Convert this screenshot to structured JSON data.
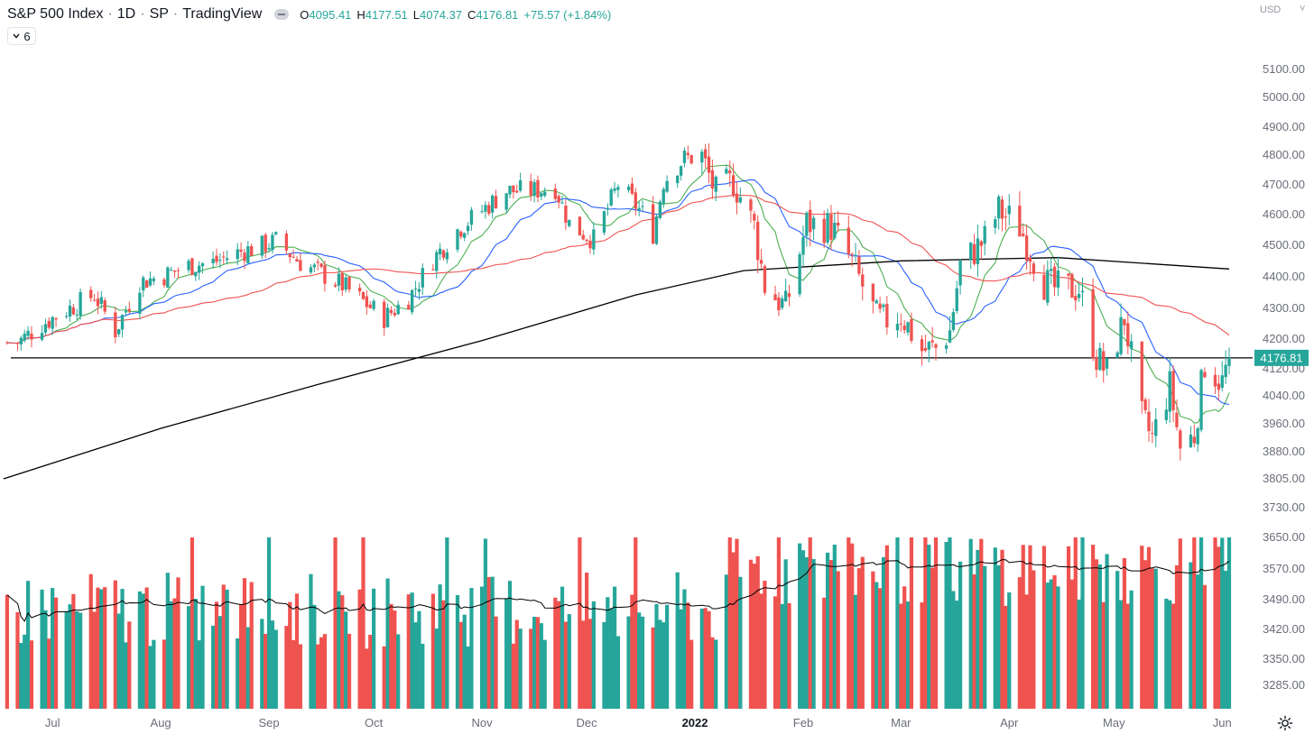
{
  "header": {
    "symbol": "S&P 500 Index",
    "interval": "1D",
    "exchange": "SP",
    "source": "TradingView",
    "ohlc": {
      "open_label": "O",
      "open": "4095.41",
      "high_label": "H",
      "high": "4177.51",
      "low_label": "L",
      "low": "4074.37",
      "close_label": "C",
      "close": "4176.81",
      "change": "+75.57 (+1.84%)"
    },
    "collapse_count": "6"
  },
  "currency": "USD",
  "last_price_label": "4176.81",
  "colors": {
    "up": "#26a69a",
    "down": "#ef5350",
    "ma_fast": "#4caf50",
    "ma_mid": "#2962ff",
    "ma_slow": "#ef5350",
    "ma_long": "#000000",
    "level_line": "#000000"
  },
  "icons": {
    "settings": "gear-icon",
    "collapse": "chevron-down-icon",
    "visibility": "eye-icon"
  },
  "chart_data": {
    "type": "candlestick",
    "title": "S&P 500 Index · 1D · SP",
    "price_axis_ticks": [
      "5100.00",
      "5000.00",
      "4900.00",
      "4800.00",
      "4700.00",
      "4600.00",
      "4500.00",
      "4400.00",
      "4300.00",
      "4200.00",
      "4120.00",
      "4040.00",
      "3960.00",
      "3880.00",
      "3805.00",
      "3730.00",
      "3650.00",
      "3570.00",
      "3490.00",
      "3420.00",
      "3350.00",
      "3285.00"
    ],
    "price_range": [
      3805,
      4820
    ],
    "time_axis_ticks": [
      {
        "label": "Jul"
      },
      {
        "label": "Aug"
      },
      {
        "label": "Sep"
      },
      {
        "label": "Oct"
      },
      {
        "label": "Nov"
      },
      {
        "label": "Dec"
      },
      {
        "label": "2022",
        "bold": true
      },
      {
        "label": "Feb"
      },
      {
        "label": "Mar"
      },
      {
        "label": "Apr"
      },
      {
        "label": "May"
      },
      {
        "label": "Jun"
      }
    ],
    "horizontal_level": 4176.81,
    "close_path": [
      {
        "date": "2021-06-21",
        "close": 4224
      },
      {
        "date": "2021-06-28",
        "close": 4280
      },
      {
        "date": "2021-07-06",
        "close": 4330
      },
      {
        "date": "2021-07-13",
        "close": 4370
      },
      {
        "date": "2021-07-19",
        "close": 4260
      },
      {
        "date": "2021-07-26",
        "close": 4410
      },
      {
        "date": "2021-08-02",
        "close": 4430
      },
      {
        "date": "2021-08-09",
        "close": 4460
      },
      {
        "date": "2021-08-16",
        "close": 4470
      },
      {
        "date": "2021-08-23",
        "close": 4500
      },
      {
        "date": "2021-08-30",
        "close": 4520
      },
      {
        "date": "2021-09-03",
        "close": 4536
      },
      {
        "date": "2021-09-10",
        "close": 4470
      },
      {
        "date": "2021-09-17",
        "close": 4430
      },
      {
        "date": "2021-09-22",
        "close": 4400
      },
      {
        "date": "2021-09-28",
        "close": 4350
      },
      {
        "date": "2021-10-04",
        "close": 4300
      },
      {
        "date": "2021-10-11",
        "close": 4360
      },
      {
        "date": "2021-10-18",
        "close": 4480
      },
      {
        "date": "2021-10-25",
        "close": 4570
      },
      {
        "date": "2021-11-01",
        "close": 4630
      },
      {
        "date": "2021-11-08",
        "close": 4690
      },
      {
        "date": "2021-11-15",
        "close": 4690
      },
      {
        "date": "2021-11-22",
        "close": 4700
      },
      {
        "date": "2021-11-26",
        "close": 4590
      },
      {
        "date": "2021-11-30",
        "close": 4560
      },
      {
        "date": "2021-12-03",
        "close": 4540
      },
      {
        "date": "2021-12-10",
        "close": 4710
      },
      {
        "date": "2021-12-17",
        "close": 4620
      },
      {
        "date": "2021-12-20",
        "close": 4560
      },
      {
        "date": "2021-12-23",
        "close": 4720
      },
      {
        "date": "2021-12-29",
        "close": 4790
      },
      {
        "date": "2022-01-03",
        "close": 4795
      },
      {
        "date": "2022-01-07",
        "close": 4680
      },
      {
        "date": "2022-01-12",
        "close": 4720
      },
      {
        "date": "2022-01-18",
        "close": 4580
      },
      {
        "date": "2022-01-21",
        "close": 4400
      },
      {
        "date": "2022-01-27",
        "close": 4330
      },
      {
        "date": "2022-02-02",
        "close": 4590
      },
      {
        "date": "2022-02-09",
        "close": 4580
      },
      {
        "date": "2022-02-15",
        "close": 4470
      },
      {
        "date": "2022-02-22",
        "close": 4300
      },
      {
        "date": "2022-02-24",
        "close": 4290
      },
      {
        "date": "2022-03-01",
        "close": 4310
      },
      {
        "date": "2022-03-07",
        "close": 4200
      },
      {
        "date": "2022-03-11",
        "close": 4205
      },
      {
        "date": "2022-03-15",
        "close": 4260
      },
      {
        "date": "2022-03-18",
        "close": 4460
      },
      {
        "date": "2022-03-25",
        "close": 4540
      },
      {
        "date": "2022-03-29",
        "close": 4630
      },
      {
        "date": "2022-04-04",
        "close": 4580
      },
      {
        "date": "2022-04-11",
        "close": 4410
      },
      {
        "date": "2022-04-14",
        "close": 4390
      },
      {
        "date": "2022-04-21",
        "close": 4390
      },
      {
        "date": "2022-04-26",
        "close": 4180
      },
      {
        "date": "2022-04-29",
        "close": 4130
      },
      {
        "date": "2022-05-04",
        "close": 4300
      },
      {
        "date": "2022-05-09",
        "close": 3990
      },
      {
        "date": "2022-05-12",
        "close": 3930
      },
      {
        "date": "2022-05-17",
        "close": 4090
      },
      {
        "date": "2022-05-20",
        "close": 3900
      },
      {
        "date": "2022-05-24",
        "close": 3940
      },
      {
        "date": "2022-05-27",
        "close": 4160
      },
      {
        "date": "2022-06-01",
        "close": 4100
      },
      {
        "date": "2022-06-03",
        "close": 4176.81
      }
    ],
    "moving_averages": [
      {
        "name": "MA (green, fast)",
        "color": "#4caf50"
      },
      {
        "name": "MA (blue)",
        "color": "#2962ff"
      },
      {
        "name": "MA (red)",
        "color": "#ef5350"
      },
      {
        "name": "MA (black, long)",
        "color": "#000000",
        "points": [
          {
            "date": "2021-06-17",
            "value": 3805
          },
          {
            "date": "2021-08-01",
            "value": 3960
          },
          {
            "date": "2021-09-15",
            "value": 4095
          },
          {
            "date": "2021-11-01",
            "value": 4230
          },
          {
            "date": "2021-12-15",
            "value": 4370
          },
          {
            "date": "2022-01-15",
            "value": 4445
          },
          {
            "date": "2022-03-01",
            "value": 4475
          },
          {
            "date": "2022-04-15",
            "value": 4485
          },
          {
            "date": "2022-06-03",
            "value": 4450
          }
        ]
      }
    ],
    "volume_ma_line": true
  }
}
